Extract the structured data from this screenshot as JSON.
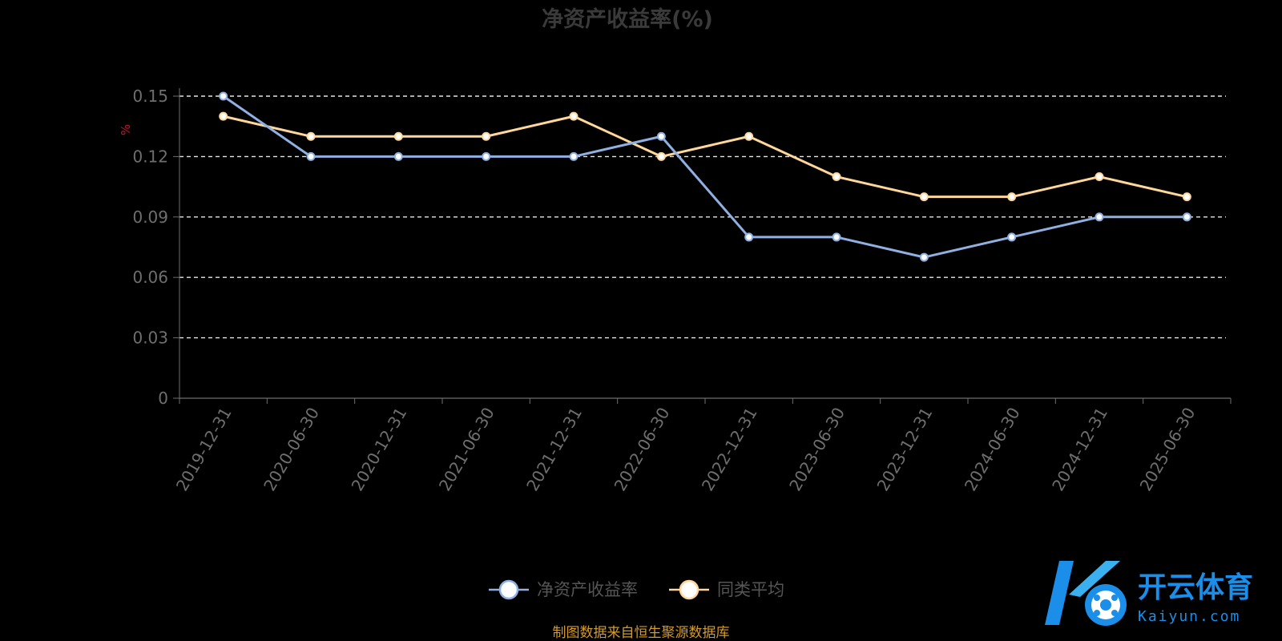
{
  "chart_data": {
    "type": "line",
    "title": "净资产收益率(%)",
    "ylabel": "%",
    "xlabel": "",
    "categories": [
      "2019-12-31",
      "2020-06-30",
      "2020-12-31",
      "2021-06-30",
      "2021-12-31",
      "2022-06-30",
      "2022-12-31",
      "2023-06-30",
      "2023-12-31",
      "2024-06-30",
      "2024-12-31",
      "2025-06-30"
    ],
    "y_ticks": [
      "0",
      "0.03",
      "0.06",
      "0.09",
      "0.12",
      "0.15"
    ],
    "ylim": [
      0,
      0.15
    ],
    "grid": true,
    "legend_position": "bottom-center",
    "series": [
      {
        "name": "净资产收益率",
        "color": "#8fb0e0",
        "values": [
          0.15,
          0.12,
          0.12,
          0.12,
          0.12,
          0.13,
          0.08,
          0.08,
          0.07,
          0.08,
          0.09,
          0.09
        ]
      },
      {
        "name": "同类平均",
        "color": "#ffd79a",
        "values": [
          0.14,
          0.13,
          0.13,
          0.13,
          0.14,
          0.12,
          0.13,
          0.11,
          0.1,
          0.1,
          0.11,
          0.1
        ]
      }
    ]
  },
  "source_note": "制图数据来自恒生聚源数据库",
  "watermark": {
    "brand": "开云体育",
    "url": "Kaiyun.com",
    "logo": "k-ball-logo"
  }
}
